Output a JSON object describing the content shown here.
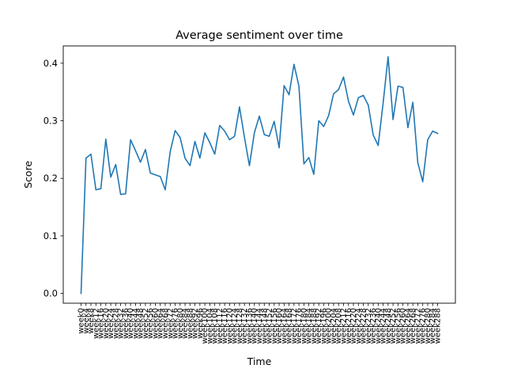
{
  "chart_data": {
    "type": "line",
    "title": "Average sentiment over time",
    "xlabel": "Time",
    "ylabel": "Score",
    "ylim": [
      -0.017,
      0.43
    ],
    "yticks": [
      0.0,
      0.1,
      0.2,
      0.3,
      0.4
    ],
    "ytick_labels": [
      "0.0",
      "0.1",
      "0.2",
      "0.3",
      "0.4"
    ],
    "grid": false,
    "line_color": "#1f77b4",
    "categories": [
      "week0",
      "week4",
      "week8",
      "week12",
      "week16",
      "week20",
      "week24",
      "week28",
      "week32",
      "week36",
      "week40",
      "week44",
      "week48",
      "week52",
      "week56",
      "week60",
      "week64",
      "week68",
      "week72",
      "week76",
      "week80",
      "week84",
      "week88",
      "week92",
      "week96",
      "week100",
      "week104",
      "week108",
      "week112",
      "week116",
      "week120",
      "week124",
      "week128",
      "week132",
      "week136",
      "week140",
      "week144",
      "week148",
      "week152",
      "week156",
      "week160",
      "week164",
      "week168",
      "week172",
      "week176",
      "week180",
      "week184",
      "week188",
      "week192",
      "week196",
      "week200",
      "week204",
      "week208",
      "week212",
      "week216",
      "week220",
      "week224",
      "week228",
      "week232",
      "week236",
      "week240",
      "week244",
      "week248",
      "week252",
      "week256",
      "week260",
      "week264",
      "week268",
      "week272",
      "week276",
      "week280",
      "week284",
      "week288"
    ],
    "values": [
      0.0,
      0.235,
      0.242,
      0.18,
      0.182,
      0.268,
      0.202,
      0.224,
      0.172,
      0.173,
      0.267,
      0.248,
      0.228,
      0.25,
      0.209,
      0.206,
      0.203,
      0.18,
      0.246,
      0.283,
      0.271,
      0.235,
      0.222,
      0.264,
      0.235,
      0.279,
      0.262,
      0.242,
      0.292,
      0.282,
      0.267,
      0.273,
      0.324,
      0.271,
      0.222,
      0.279,
      0.308,
      0.276,
      0.273,
      0.299,
      0.253,
      0.361,
      0.345,
      0.398,
      0.36,
      0.225,
      0.236,
      0.207,
      0.3,
      0.29,
      0.309,
      0.347,
      0.354,
      0.376,
      0.334,
      0.31,
      0.34,
      0.344,
      0.327,
      0.275,
      0.257,
      0.331,
      0.411,
      0.302,
      0.36,
      0.358,
      0.288,
      0.332,
      0.227,
      0.194,
      0.267,
      0.282,
      0.278
    ]
  }
}
